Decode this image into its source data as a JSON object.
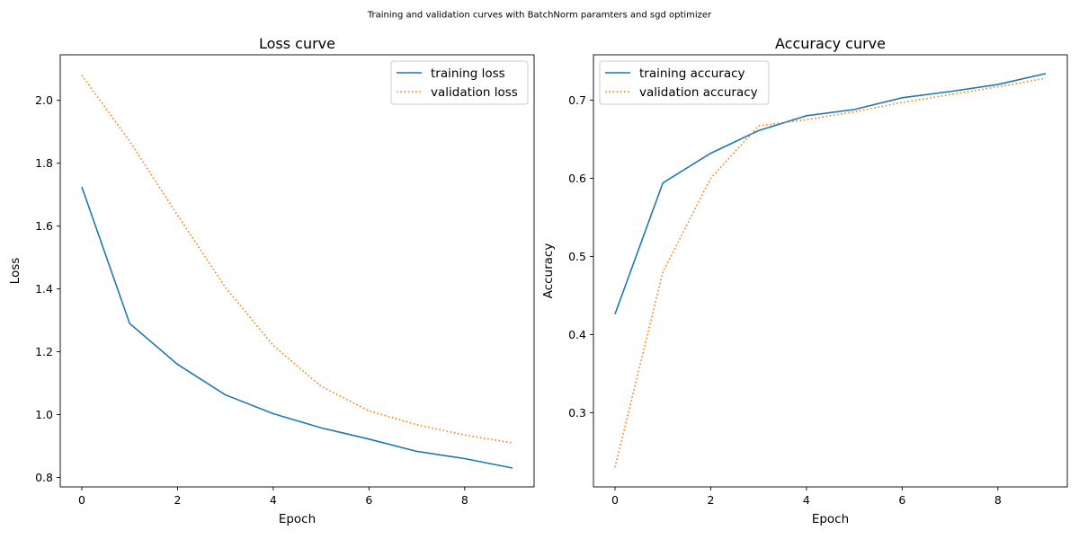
{
  "suptitle": "Training and validation curves with BatchNorm paramters and sgd optimizer",
  "chart_data": [
    {
      "type": "line",
      "title": "Loss curve",
      "xlabel": "Epoch",
      "ylabel": "Loss",
      "x": [
        0,
        1,
        2,
        3,
        4,
        5,
        6,
        7,
        8,
        9
      ],
      "xlim": [
        -0.45,
        9.45
      ],
      "ylim": [
        0.77,
        2.145
      ],
      "xticks": [
        0,
        2,
        4,
        6,
        8
      ],
      "xtick_labels": [
        "0",
        "2",
        "4",
        "6",
        "8"
      ],
      "yticks": [
        0.8,
        1.0,
        1.2,
        1.4,
        1.6,
        1.8,
        2.0
      ],
      "ytick_labels": [
        "0.8",
        "1.0",
        "1.2",
        "1.4",
        "1.6",
        "1.8",
        "2.0"
      ],
      "grid": false,
      "legend": "upper right",
      "series": [
        {
          "name": "training loss",
          "color": "#1f77b4",
          "style": "solid",
          "values": [
            1.725,
            1.29,
            1.16,
            1.063,
            1.003,
            0.958,
            0.922,
            0.883,
            0.86,
            0.83
          ]
        },
        {
          "name": "validation loss",
          "color": "#ff7f0e",
          "style": "dotted",
          "values": [
            2.08,
            1.87,
            1.635,
            1.405,
            1.22,
            1.09,
            1.012,
            0.968,
            0.935,
            0.91
          ]
        }
      ]
    },
    {
      "type": "line",
      "title": "Accuracy curve",
      "xlabel": "Epoch",
      "ylabel": "Accuracy",
      "x": [
        0,
        1,
        2,
        3,
        4,
        5,
        6,
        7,
        8,
        9
      ],
      "xlim": [
        -0.45,
        9.45
      ],
      "ylim": [
        0.205,
        0.758
      ],
      "xticks": [
        0,
        2,
        4,
        6,
        8
      ],
      "xtick_labels": [
        "0",
        "2",
        "4",
        "6",
        "8"
      ],
      "yticks": [
        0.3,
        0.4,
        0.5,
        0.6,
        0.7
      ],
      "ytick_labels": [
        "0.3",
        "0.4",
        "0.5",
        "0.6",
        "0.7"
      ],
      "grid": false,
      "legend": "upper left",
      "series": [
        {
          "name": "training accuracy",
          "color": "#1f77b4",
          "style": "solid",
          "values": [
            0.426,
            0.594,
            0.632,
            0.661,
            0.68,
            0.688,
            0.703,
            0.711,
            0.72,
            0.734
          ]
        },
        {
          "name": "validation accuracy",
          "color": "#ff7f0e",
          "style": "dotted",
          "values": [
            0.23,
            0.48,
            0.6,
            0.667,
            0.675,
            0.685,
            0.697,
            0.707,
            0.717,
            0.728
          ]
        }
      ]
    }
  ]
}
